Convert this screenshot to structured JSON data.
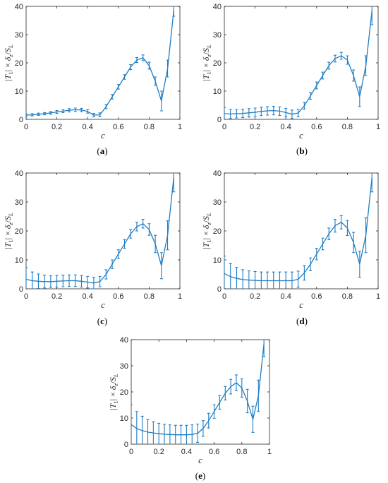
{
  "chart_data": [
    {
      "type": "line",
      "panel": "a",
      "caption": {
        "open": "(",
        "letter": "a",
        "close": ")"
      },
      "xlabel": "c",
      "ylabel": {
        "pre": "|",
        "t": "T",
        "sub1": "1",
        "mid": "| × ",
        "d": "δ",
        "subz": "z",
        "slash": "/",
        "s": "S",
        "subL": "L"
      },
      "xlim": [
        0,
        1
      ],
      "ylim": [
        0,
        40
      ],
      "xticks": [
        0,
        0.2,
        0.4,
        0.6,
        0.8,
        1
      ],
      "xtick_labels": [
        "0",
        "0.2",
        "0.4",
        "0.6",
        "0.8",
        "1"
      ],
      "yticks": [
        0,
        10,
        20,
        30,
        40
      ],
      "ytick_labels": [
        "0",
        "10",
        "20",
        "30",
        "40"
      ],
      "grid": false,
      "x": [
        0.0,
        0.04,
        0.08,
        0.12,
        0.16,
        0.2,
        0.24,
        0.28,
        0.32,
        0.36,
        0.4,
        0.44,
        0.48,
        0.52,
        0.56,
        0.6,
        0.64,
        0.68,
        0.72,
        0.76,
        0.8,
        0.84,
        0.88,
        0.92,
        0.96
      ],
      "y": [
        1.5,
        1.6,
        1.8,
        2.0,
        2.3,
        2.6,
        2.9,
        3.2,
        3.4,
        3.3,
        2.8,
        1.5,
        1.6,
        4.5,
        8.0,
        11.5,
        15.0,
        18.5,
        21.0,
        21.8,
        19.0,
        13.5,
        6.5,
        18.0,
        38.5
      ],
      "err": [
        0.4,
        0.4,
        0.4,
        0.4,
        0.5,
        0.5,
        0.5,
        0.6,
        0.6,
        0.6,
        0.6,
        0.6,
        0.7,
        0.7,
        0.8,
        0.8,
        0.8,
        0.9,
        0.9,
        1.0,
        1.2,
        1.5,
        3.5,
        3.0,
        2.0
      ]
    },
    {
      "type": "line",
      "panel": "b",
      "caption": {
        "open": "(",
        "letter": "b",
        "close": ")"
      },
      "xlabel": "c",
      "ylabel": {
        "pre": "|",
        "t": "T",
        "sub1": "1",
        "mid": "| × ",
        "d": "δ",
        "subz": "z",
        "slash": "/",
        "s": "S",
        "subL": "L"
      },
      "xlim": [
        0,
        1
      ],
      "ylim": [
        0,
        40
      ],
      "xticks": [
        0,
        0.2,
        0.4,
        0.6,
        0.8,
        1
      ],
      "xtick_labels": [
        "0",
        "0.2",
        "0.4",
        "0.6",
        "0.8",
        "1"
      ],
      "yticks": [
        0,
        10,
        20,
        30,
        40
      ],
      "ytick_labels": [
        "0",
        "10",
        "20",
        "30",
        "40"
      ],
      "grid": false,
      "x": [
        0.0,
        0.04,
        0.08,
        0.12,
        0.16,
        0.2,
        0.24,
        0.28,
        0.32,
        0.36,
        0.4,
        0.44,
        0.48,
        0.52,
        0.56,
        0.6,
        0.64,
        0.68,
        0.72,
        0.76,
        0.8,
        0.84,
        0.88,
        0.92,
        0.96
      ],
      "y": [
        2.0,
        1.9,
        2.0,
        2.1,
        2.3,
        2.5,
        2.8,
        3.0,
        3.1,
        2.9,
        2.4,
        1.8,
        2.2,
        4.8,
        8.3,
        12.0,
        15.5,
        19.0,
        21.5,
        22.5,
        21.0,
        15.5,
        8.0,
        19.0,
        38.5
      ],
      "err": [
        2.2,
        1.6,
        1.5,
        1.5,
        1.5,
        1.5,
        1.5,
        1.5,
        1.5,
        1.5,
        1.5,
        1.5,
        1.3,
        1.2,
        1.2,
        1.2,
        1.2,
        1.2,
        1.2,
        1.2,
        1.5,
        2.0,
        3.5,
        3.5,
        5.0
      ]
    },
    {
      "type": "line",
      "panel": "c",
      "caption": {
        "open": "(",
        "letter": "c",
        "close": ")"
      },
      "xlabel": "c",
      "ylabel": {
        "pre": "|",
        "t": "T",
        "sub1": "1",
        "mid": "| × ",
        "d": "δ",
        "subz": "z",
        "slash": "/",
        "s": "S",
        "subL": "L"
      },
      "xlim": [
        0,
        1
      ],
      "ylim": [
        0,
        40
      ],
      "xticks": [
        0,
        0.2,
        0.4,
        0.6,
        0.8,
        1
      ],
      "xtick_labels": [
        "0",
        "0.2",
        "0.4",
        "0.6",
        "0.8",
        "1"
      ],
      "yticks": [
        0,
        10,
        20,
        30,
        40
      ],
      "ytick_labels": [
        "0",
        "10",
        "20",
        "30",
        "40"
      ],
      "grid": false,
      "x": [
        0.0,
        0.04,
        0.08,
        0.12,
        0.16,
        0.2,
        0.24,
        0.28,
        0.32,
        0.36,
        0.4,
        0.44,
        0.48,
        0.52,
        0.56,
        0.6,
        0.64,
        0.68,
        0.72,
        0.76,
        0.8,
        0.84,
        0.88,
        0.92,
        0.96
      ],
      "y": [
        3.3,
        2.8,
        2.6,
        2.5,
        2.5,
        2.6,
        2.7,
        2.8,
        2.8,
        2.6,
        2.3,
        2.0,
        2.5,
        5.0,
        8.5,
        12.0,
        15.5,
        19.0,
        21.5,
        22.5,
        20.5,
        15.5,
        8.0,
        18.5,
        38.5
      ],
      "err": [
        4.0,
        3.0,
        2.5,
        2.2,
        2.0,
        2.0,
        2.0,
        2.0,
        2.0,
        2.0,
        2.0,
        2.0,
        1.8,
        1.6,
        1.5,
        1.5,
        1.5,
        1.5,
        1.5,
        1.5,
        2.0,
        3.0,
        4.5,
        5.0,
        5.0
      ]
    },
    {
      "type": "line",
      "panel": "d",
      "caption": {
        "open": "(",
        "letter": "d",
        "close": ")"
      },
      "xlabel": "c",
      "ylabel": {
        "pre": "|",
        "t": "T",
        "sub1": "1",
        "mid": "| × ",
        "d": "δ",
        "subz": "z",
        "slash": "/",
        "s": "S",
        "subL": "L"
      },
      "xlim": [
        0,
        1
      ],
      "ylim": [
        0,
        40
      ],
      "xticks": [
        0,
        0.2,
        0.4,
        0.6,
        0.8,
        1
      ],
      "xtick_labels": [
        "0",
        "0.2",
        "0.4",
        "0.6",
        "0.8",
        "1"
      ],
      "yticks": [
        0,
        10,
        20,
        30,
        40
      ],
      "ytick_labels": [
        "0",
        "10",
        "20",
        "30",
        "40"
      ],
      "grid": false,
      "x": [
        0.0,
        0.04,
        0.08,
        0.12,
        0.16,
        0.2,
        0.24,
        0.28,
        0.32,
        0.36,
        0.4,
        0.44,
        0.48,
        0.52,
        0.56,
        0.6,
        0.64,
        0.68,
        0.72,
        0.76,
        0.8,
        0.84,
        0.88,
        0.92,
        0.96
      ],
      "y": [
        5.3,
        4.2,
        3.6,
        3.2,
        3.0,
        2.9,
        2.8,
        2.8,
        2.8,
        2.8,
        2.8,
        2.8,
        3.3,
        5.5,
        8.5,
        12.0,
        15.5,
        19.0,
        21.8,
        23.0,
        21.0,
        16.0,
        8.5,
        18.5,
        38.5
      ],
      "err": [
        6.0,
        4.5,
        3.8,
        3.4,
        3.2,
        3.1,
        3.0,
        3.0,
        3.0,
        3.0,
        3.0,
        3.0,
        2.8,
        2.5,
        2.2,
        2.0,
        2.0,
        2.0,
        2.2,
        2.3,
        2.6,
        3.5,
        4.5,
        6.0,
        5.0
      ]
    },
    {
      "type": "line",
      "panel": "e",
      "caption": {
        "open": "(",
        "letter": "e",
        "close": ")"
      },
      "xlabel": "c",
      "ylabel": {
        "pre": "|",
        "t": "T",
        "sub1": "1",
        "mid": "| × ",
        "d": "δ",
        "subz": "z",
        "slash": "/",
        "s": "S",
        "subL": "L"
      },
      "xlim": [
        0,
        1
      ],
      "ylim": [
        0,
        40
      ],
      "xticks": [
        0,
        0.2,
        0.4,
        0.6,
        0.8,
        1
      ],
      "xtick_labels": [
        "0",
        "0.2",
        "0.4",
        "0.6",
        "0.8",
        "1"
      ],
      "yticks": [
        0,
        10,
        20,
        30,
        40
      ],
      "ytick_labels": [
        "0",
        "10",
        "20",
        "30",
        "40"
      ],
      "grid": false,
      "x": [
        0.0,
        0.04,
        0.08,
        0.12,
        0.16,
        0.2,
        0.24,
        0.28,
        0.32,
        0.36,
        0.4,
        0.44,
        0.48,
        0.52,
        0.56,
        0.6,
        0.64,
        0.68,
        0.72,
        0.76,
        0.8,
        0.84,
        0.88,
        0.92,
        0.96
      ],
      "y": [
        7.5,
        6.0,
        5.2,
        4.6,
        4.3,
        4.0,
        3.8,
        3.7,
        3.6,
        3.6,
        3.6,
        3.7,
        4.2,
        6.0,
        9.0,
        12.5,
        16.0,
        19.5,
        22.0,
        23.5,
        21.5,
        16.5,
        9.5,
        18.5,
        38.5
      ],
      "err": [
        7.5,
        6.5,
        5.5,
        4.8,
        4.3,
        4.0,
        3.8,
        3.7,
        3.6,
        3.6,
        3.6,
        3.7,
        3.5,
        3.0,
        2.8,
        2.6,
        2.6,
        2.6,
        2.8,
        3.0,
        3.5,
        4.5,
        5.0,
        6.0,
        5.0
      ]
    }
  ]
}
